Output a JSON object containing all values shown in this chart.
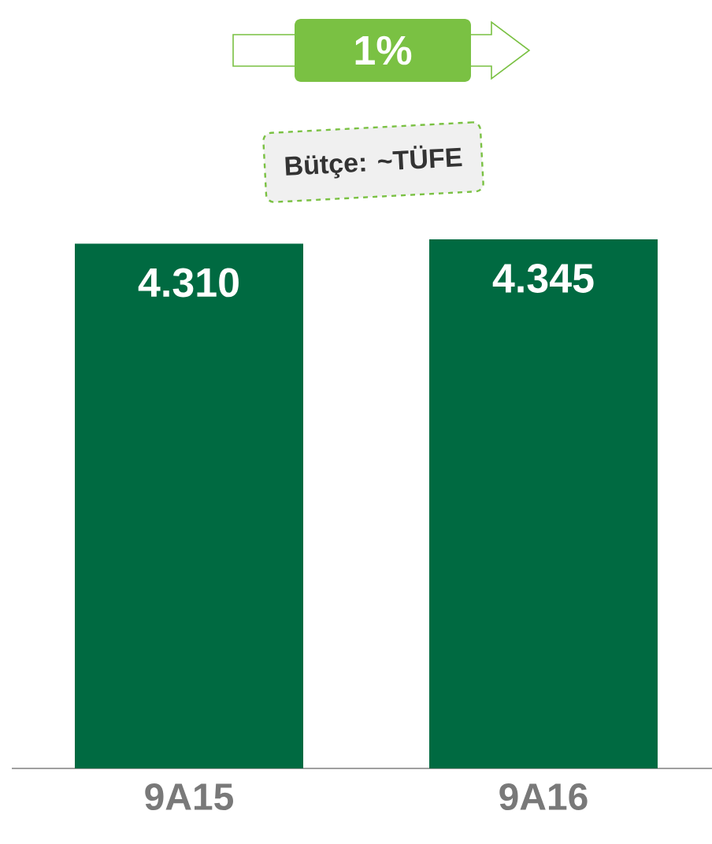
{
  "chart_data": {
    "type": "bar",
    "categories": [
      "9A15",
      "9A16"
    ],
    "values": [
      4310,
      4345
    ],
    "value_labels": [
      "4.310",
      "4.345"
    ],
    "color": "#006a41",
    "annotations": [
      "1%",
      "Bütçe: ~TÜFE"
    ]
  }
}
